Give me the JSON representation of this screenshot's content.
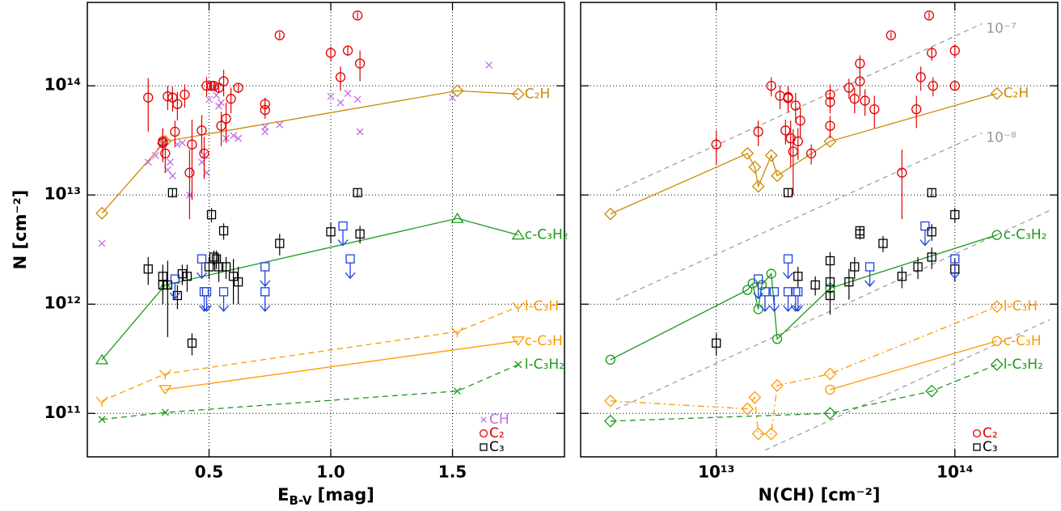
{
  "chart_data": [
    {
      "type": "scatter",
      "xlabel": {
        "base": "E",
        "sub": "B-V",
        "unit": "[mag]"
      },
      "ylabel": "N [cm⁻²]",
      "xlog": false,
      "ylog": true,
      "grid": true,
      "legend": "lower right",
      "xlim": [
        0,
        1.96
      ],
      "ylim": [
        40000000000.0,
        580000000000000.0
      ],
      "xticks": [
        0.5,
        {
          "value": 1,
          "label": "1.0"
        },
        1.5
      ],
      "yticks": [
        {
          "value": 100000000000.0,
          "label": "10¹¹"
        },
        {
          "value": 1000000000000.0,
          "label": "10¹²"
        },
        {
          "value": 10000000000000.0,
          "label": "10¹³"
        },
        {
          "value": 100000000000000.0,
          "label": "10¹⁴"
        }
      ],
      "series": [
        {
          "name": "C₂H",
          "key": "end",
          "color": "#cc8800",
          "marker": "diamond",
          "line": "solid",
          "x": [
            0.06,
            0.32,
            1.52,
            1.77
          ],
          "values": [
            6800000000000.0,
            31000000000000.0,
            90000000000000.0,
            84000000000000.0
          ]
        },
        {
          "name": "c-C₃H₂",
          "key": "end",
          "color": "#1a9a1a",
          "marker": "tri-up",
          "line": "solid",
          "x": [
            0.06,
            0.32,
            1.52,
            1.77
          ],
          "values": [
            310000000000.0,
            1500000000000.0,
            6100000000000.0,
            4300000000000.0
          ]
        },
        {
          "name": "l-C₃H",
          "key": "end",
          "color": "#ff9900",
          "marker": "vee",
          "line": "dashed",
          "x": [
            0.06,
            0.32,
            1.52,
            1.77
          ],
          "values": [
            130000000000.0,
            230000000000.0,
            560000000000.0,
            950000000000.0
          ]
        },
        {
          "name": "c-C₃H",
          "key": "end",
          "color": "#ff9900",
          "marker": "tri-down",
          "line": "solid",
          "x": [
            0.32,
            1.77
          ],
          "values": [
            165000000000.0,
            460000000000.0
          ]
        },
        {
          "name": "l-C₃H₂",
          "key": "end",
          "color": "#1a9a1a",
          "marker": "xmark",
          "line": "dashed",
          "x": [
            0.06,
            0.32,
            1.52,
            1.77
          ],
          "values": [
            88000000000.0,
            102000000000.0,
            160000000000.0,
            280000000000.0
          ]
        },
        {
          "name": "CH",
          "key": "legend",
          "color": "#c070e0",
          "marker": "xmark",
          "x": [
            0.06,
            0.25,
            0.28,
            0.3,
            0.31,
            0.33,
            0.34,
            0.35,
            0.37,
            0.39,
            0.42,
            0.47,
            0.48,
            0.49,
            0.5,
            0.52,
            0.53,
            0.54,
            0.55,
            0.57,
            0.6,
            0.62,
            0.73,
            0.73,
            0.79,
            1.0,
            1.04,
            1.07,
            1.11,
            1.12,
            1.5,
            1.65
          ],
          "values": [
            3600000000000.0,
            20000000000000.0,
            23000000000000.0,
            28000000000000.0,
            30000000000000.0,
            17000000000000.0,
            20000000000000.0,
            15000000000000.0,
            29000000000000.0,
            30000000000000.0,
            10000000000000.0,
            20000000000000.0,
            23000000000000.0,
            16000000000000.0,
            75000000000000.0,
            97000000000000.0,
            82000000000000.0,
            65000000000000.0,
            70000000000000.0,
            33000000000000.0,
            35000000000000.0,
            33000000000000.0,
            42000000000000.0,
            38000000000000.0,
            44000000000000.0,
            80000000000000.0,
            70000000000000.0,
            85000000000000.0,
            75000000000000.0,
            38000000000000.0,
            78000000000000.0,
            155000000000000.0
          ]
        },
        {
          "name": "C₂",
          "key": "legend",
          "color": "#e00000",
          "marker": "circle",
          "x": [
            0.25,
            0.31,
            0.31,
            0.32,
            0.33,
            0.35,
            0.36,
            0.37,
            0.4,
            0.42,
            0.43,
            0.47,
            0.48,
            0.49,
            0.51,
            0.52,
            0.54,
            0.55,
            0.56,
            0.57,
            0.59,
            0.62,
            0.73,
            0.73,
            0.79,
            1.0,
            1.04,
            1.07,
            1.11,
            1.12
          ],
          "values": [
            78000000000000.0,
            31000000000000.0,
            30000000000000.0,
            24000000000000.0,
            80000000000000.0,
            78000000000000.0,
            38000000000000.0,
            68000000000000.0,
            83000000000000.0,
            16000000000000.0,
            29000000000000.0,
            39000000000000.0,
            24000000000000.0,
            100000000000000.0,
            100000000000000.0,
            100000000000000.0,
            96000000000000.0,
            43000000000000.0,
            110000000000000.0,
            50000000000000.0,
            76000000000000.0,
            96000000000000.0,
            60000000000000.0,
            68000000000000.0,
            290000000000000.0,
            200000000000000.0,
            120000000000000.0,
            210000000000000.0,
            440000000000000.0,
            160000000000000.0
          ],
          "err": [
            40000000000000.0,
            10000000000000.0,
            10000000000000.0,
            8000000000000.0,
            20000000000000.0,
            20000000000000.0,
            10000000000000.0,
            20000000000000.0,
            20000000000000.0,
            10000000000000.0,
            20000000000000.0,
            15000000000000.0,
            10000000000000.0,
            20000000000000.0,
            10000000000000.0,
            10000000000000.0,
            10000000000000.0,
            15000000000000.0,
            30000000000000.0,
            20000000000000.0,
            20000000000000.0,
            10000000000000.0,
            10000000000000.0,
            10000000000000.0,
            20000000000000.0,
            30000000000000.0,
            30000000000000.0,
            20000000000000.0,
            30000000000000.0,
            50000000000000.0
          ]
        },
        {
          "name": "C₃",
          "key": "legend",
          "color": "#000000",
          "marker": "square",
          "x": [
            0.25,
            0.31,
            0.31,
            0.33,
            0.35,
            0.37,
            0.39,
            0.41,
            0.43,
            0.5,
            0.51,
            0.52,
            0.53,
            0.54,
            0.56,
            0.57,
            0.6,
            0.62,
            0.79,
            1.0,
            1.11,
            1.12
          ],
          "values": [
            2100000000000.0,
            1800000000000.0,
            1500000000000.0,
            1500000000000.0,
            10500000000000.0,
            1200000000000.0,
            1900000000000.0,
            1800000000000.0,
            440000000000.0,
            2200000000000.0,
            6600000000000.0,
            2700000000000.0,
            2600000000000.0,
            2200000000000.0,
            4700000000000.0,
            2200000000000.0,
            1800000000000.0,
            1600000000000.0,
            3600000000000.0,
            4600000000000.0,
            10500000000000.0,
            4400000000000.0
          ],
          "err": [
            600000000000.0,
            500000000000.0,
            500000000000.0,
            1000000000000.0,
            1000000000000.0,
            300000000000.0,
            400000000000.0,
            500000000000.0,
            100000000000.0,
            500000000000.0,
            1000000000000.0,
            400000000000.0,
            500000000000.0,
            600000000000.0,
            800000000000.0,
            500000000000.0,
            800000000000.0,
            600000000000.0,
            800000000000.0,
            1000000000000.0,
            1000000000000.0,
            800000000000.0
          ]
        },
        {
          "color": "#2040e0",
          "marker": "limit",
          "x": [
            0.36,
            0.47,
            0.48,
            0.49,
            0.56,
            0.73,
            0.73,
            1.05,
            1.08
          ],
          "values": [
            1700000000000.0,
            2600000000000.0,
            1300000000000.0,
            1300000000000.0,
            1300000000000.0,
            2200000000000.0,
            1300000000000.0,
            5200000000000.0,
            2600000000000.0
          ]
        }
      ]
    },
    {
      "type": "scatter",
      "xlabel": "N(CH) [cm⁻²]",
      "xlog": true,
      "ylog": true,
      "grid": true,
      "legend": "lower right",
      "ytick_labels": false,
      "xlim": [
        2700000000000.0,
        270000000000000.0
      ],
      "ylim": [
        40000000000.0,
        580000000000000.0
      ],
      "xticks": [
        {
          "value": 10000000000000.0,
          "label": "10¹³"
        },
        {
          "value": 100000000000000.0,
          "label": "10¹⁴"
        }
      ],
      "yticks": [
        100000000000.0,
        1000000000000.0,
        10000000000000.0,
        100000000000000.0
      ],
      "ref_lines": [
        {
          "label": "10⁻⁷",
          "x": [
            3800000000000.0,
            130000000000000.0
          ],
          "y": [
            10900000000000.0,
            370000000000000.0
          ]
        },
        {
          "label": "10⁻⁸",
          "x": [
            3800000000000.0,
            130000000000000.0
          ],
          "y": [
            1090000000000.0,
            37000000000000.0
          ]
        },
        {
          "x": [
            3800000000000.0,
            250000000000000.0
          ],
          "y": [
            109000000000.0,
            7200000000000.0
          ]
        },
        {
          "x": [
            16000000000000.0,
            250000000000000.0
          ],
          "y": [
            46000000000.0,
            720000000000.0
          ]
        }
      ],
      "series": [
        {
          "name": "C₂H",
          "key": "end",
          "color": "#cc8800",
          "marker": "diamond",
          "line": "solid",
          "x": [
            3600000000000.0,
            13500000000000.0,
            14500000000000.0,
            15000000000000.0,
            17000000000000.0,
            18000000000000.0,
            30000000000000.0,
            150000000000000.0
          ],
          "values": [
            6700000000000.0,
            24000000000000.0,
            18000000000000.0,
            12000000000000.0,
            23000000000000.0,
            15000000000000.0,
            31000000000000.0,
            85000000000000.0
          ]
        },
        {
          "name": "c-C₃H₂",
          "key": "end",
          "color": "#1a9a1a",
          "marker": "circle",
          "line": "solid",
          "x": [
            3600000000000.0,
            13500000000000.0,
            14200000000000.0,
            15000000000000.0,
            15500000000000.0,
            17000000000000.0,
            18000000000000.0,
            30000000000000.0,
            150000000000000.0
          ],
          "values": [
            310000000000.0,
            1350000000000.0,
            1550000000000.0,
            900000000000.0,
            1500000000000.0,
            1900000000000.0,
            480000000000.0,
            1400000000000.0,
            4300000000000.0
          ]
        },
        {
          "name": "l-C₃H",
          "key": "end",
          "color": "#ff9900",
          "marker": "diamond",
          "line": "dashdot",
          "x": [
            3600000000000.0,
            13500000000000.0,
            14500000000000.0,
            15000000000000.0,
            17000000000000.0,
            18000000000000.0,
            30000000000000.0,
            150000000000000.0
          ],
          "values": [
            130000000000.0,
            110000000000.0,
            140000000000.0,
            65000000000.0,
            65000000000.0,
            180000000000.0,
            230000000000.0,
            950000000000.0
          ]
        },
        {
          "name": "c-C₃H",
          "key": "end",
          "color": "#ff9900",
          "marker": "circle",
          "line": "solid",
          "x": [
            30000000000000.0,
            150000000000000.0
          ],
          "values": [
            165000000000.0,
            460000000000.0
          ]
        },
        {
          "name": "l-C₃H₂",
          "key": "end",
          "color": "#1a9a1a",
          "marker": "diamond",
          "line": "dashed",
          "x": [
            3600000000000.0,
            30000000000000.0,
            80000000000000.0,
            150000000000000.0
          ],
          "values": [
            85000000000.0,
            100000000000.0,
            160000000000.0,
            280000000000.0
          ]
        },
        {
          "name": "C₂",
          "key": "legend",
          "color": "#e00000",
          "marker": "circle",
          "x": [
            10000000000000.0,
            15000000000000.0,
            17000000000000.0,
            18500000000000.0,
            19500000000000.0,
            20000000000000.0,
            20000000000000.0,
            20500000000000.0,
            21000000000000.0,
            21500000000000.0,
            22000000000000.0,
            22500000000000.0,
            25000000000000.0,
            30000000000000.0,
            30000000000000.0,
            30000000000000.0,
            36000000000000.0,
            38000000000000.0,
            40000000000000.0,
            40000000000000.0,
            42000000000000.0,
            46000000000000.0,
            54000000000000.0,
            60000000000000.0,
            69000000000000.0,
            72000000000000.0,
            78000000000000.0,
            80000000000000.0,
            81000000000000.0,
            100000000000000.0,
            100000000000000.0
          ],
          "values": [
            29000000000000.0,
            38000000000000.0,
            100000000000000.0,
            81000000000000.0,
            39000000000000.0,
            79000000000000.0,
            77000000000000.0,
            33000000000000.0,
            25000000000000.0,
            66000000000000.0,
            31000000000000.0,
            48000000000000.0,
            24000000000000.0,
            83000000000000.0,
            71000000000000.0,
            43000000000000.0,
            96000000000000.0,
            76000000000000.0,
            110000000000000.0,
            160000000000000.0,
            73000000000000.0,
            61000000000000.0,
            290000000000000.0,
            16000000000000.0,
            61000000000000.0,
            120000000000000.0,
            440000000000000.0,
            200000000000000.0,
            100000000000000.0,
            210000000000000.0,
            100000000000000.0
          ],
          "err": [
            10000000000000.0,
            10000000000000.0,
            20000000000000.0,
            20000000000000.0,
            10000000000000.0,
            20000000000000.0,
            20000000000000.0,
            15000000000000.0,
            15000000000000.0,
            20000000000000.0,
            10000000000000.0,
            15000000000000.0,
            5000000000000.0,
            20000000000000.0,
            15000000000000.0,
            10000000000000.0,
            20000000000000.0,
            20000000000000.0,
            30000000000000.0,
            30000000000000.0,
            20000000000000.0,
            20000000000000.0,
            20000000000000.0,
            10000000000000.0,
            20000000000000.0,
            30000000000000.0,
            30000000000000.0,
            30000000000000.0,
            20000000000000.0,
            30000000000000.0,
            10000000000000.0
          ]
        },
        {
          "name": "C₃",
          "key": "legend",
          "color": "#000000",
          "marker": "square",
          "x": [
            10000000000000.0,
            20000000000000.0,
            22000000000000.0,
            26000000000000.0,
            30000000000000.0,
            30000000000000.0,
            30000000000000.0,
            36000000000000.0,
            38000000000000.0,
            40000000000000.0,
            40000000000000.0,
            50000000000000.0,
            60000000000000.0,
            70000000000000.0,
            80000000000000.0,
            80000000000000.0,
            80000000000000.0,
            100000000000000.0,
            100000000000000.0
          ],
          "values": [
            440000000000.0,
            10500000000000.0,
            1800000000000.0,
            1500000000000.0,
            2500000000000.0,
            1600000000000.0,
            1200000000000.0,
            1600000000000.0,
            2200000000000.0,
            4400000000000.0,
            4700000000000.0,
            3600000000000.0,
            1800000000000.0,
            2200000000000.0,
            10500000000000.0,
            4600000000000.0,
            2700000000000.0,
            6600000000000.0,
            2100000000000.0
          ],
          "err": [
            100000000000.0,
            1000000000000.0,
            400000000000.0,
            300000000000.0,
            500000000000.0,
            500000000000.0,
            400000000000.0,
            500000000000.0,
            500000000000.0,
            500000000000.0,
            500000000000.0,
            600000000000.0,
            400000000000.0,
            500000000000.0,
            1000000000000.0,
            800000000000.0,
            600000000000.0,
            1000000000000.0,
            500000000000.0
          ]
        },
        {
          "color": "#2040e0",
          "marker": "limit",
          "x": [
            15000000000000.0,
            16000000000000.0,
            17500000000000.0,
            20000000000000.0,
            20000000000000.0,
            21500000000000.0,
            22000000000000.0,
            44000000000000.0,
            75000000000000.0,
            100000000000000.0
          ],
          "values": [
            1700000000000.0,
            1300000000000.0,
            1300000000000.0,
            2600000000000.0,
            1300000000000.0,
            1300000000000.0,
            1300000000000.0,
            2200000000000.0,
            5200000000000.0,
            2600000000000.0
          ]
        }
      ]
    }
  ]
}
